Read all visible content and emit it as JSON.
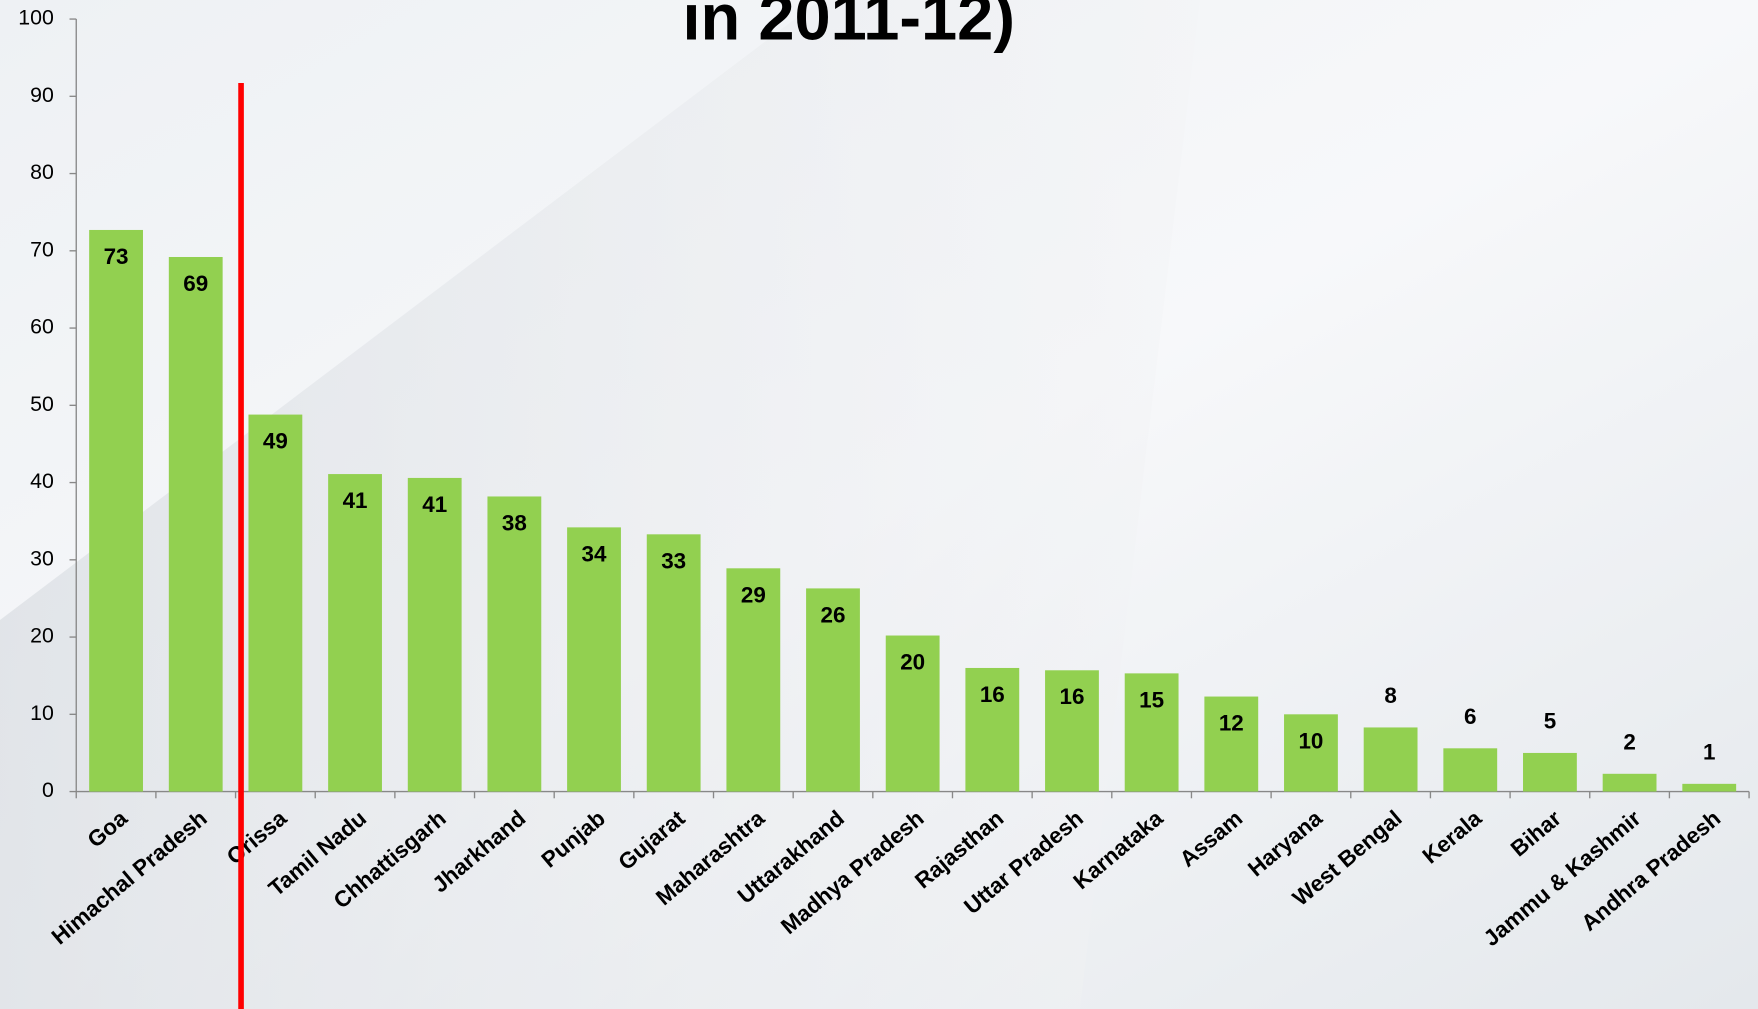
{
  "chart_data": {
    "type": "bar",
    "title": "in 2011-12)",
    "categories": [
      "Goa",
      "Himachal Pradesh",
      "Orissa",
      "Tamil Nadu",
      "Chhattisgarh",
      "Jharkhand",
      "Punjab",
      "Gujarat",
      "Maharashtra",
      "Uttarakhand",
      "Madhya Pradesh",
      "Rajasthan",
      "Uttar Pradesh",
      "Karnataka",
      "Assam",
      "Haryana",
      "West Bengal",
      "Kerala",
      "Bihar",
      "Jammu & Kashmir",
      "Andhra Pradesh"
    ],
    "values": [
      72.7,
      69.2,
      48.8,
      41.1,
      40.6,
      38.2,
      34.2,
      33.3,
      28.9,
      26.3,
      20.2,
      16.0,
      15.7,
      15.3,
      12.3,
      10.0,
      8.3,
      5.6,
      5.0,
      2.3,
      1.0
    ],
    "value_labels": [
      "73",
      "69",
      "49",
      "41",
      "41",
      "38",
      "34",
      "33",
      "29",
      "26",
      "20",
      "16",
      "16",
      "15",
      "12",
      "10",
      "8",
      "6",
      "5",
      "2",
      "1"
    ],
    "color": "#92d050",
    "ylim": [
      0,
      100
    ],
    "yticks": [
      0,
      10,
      20,
      30,
      40,
      50,
      60,
      70,
      80,
      90,
      100
    ]
  }
}
